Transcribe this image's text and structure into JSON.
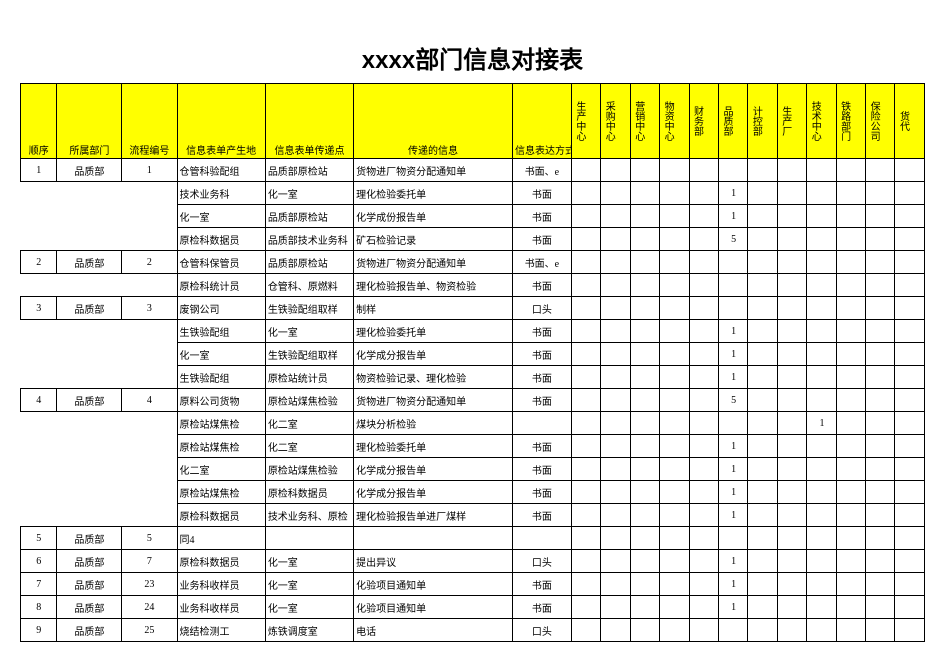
{
  "title": "xxxx部门信息对接表",
  "headers": {
    "seq": "顺序",
    "dept": "所属部门",
    "flow": "流程编号",
    "gen": "信息表单产生地",
    "pass": "信息表单传递点",
    "info": "传递的信息",
    "mode": "信息表达方式",
    "narrow": [
      "生产中心",
      "采购中心",
      "营销中心",
      "物资中心",
      "财务部",
      "品质部",
      "计控部",
      "生产厂",
      "技术中心",
      "铁路部门",
      "保险公司",
      "货代"
    ]
  },
  "rows": [
    {
      "seq": "1",
      "dept": "品质部",
      "flow": "1",
      "gen": "仓管科验配组",
      "pass": "品质部原检站",
      "info": "货物进厂物资分配通知单",
      "mode": "书面、e",
      "cells": {
        "0": "",
        "1": "",
        "2": "",
        "3": "",
        "4": "",
        "5": "",
        "6": "",
        "7": "",
        "8": "",
        "9": "",
        "10": "",
        "11": ""
      }
    },
    {
      "seq": "",
      "dept": "",
      "flow": "",
      "gen": "技术业务科",
      "pass": "化一室",
      "info": "理化检验委托单",
      "mode": "书面",
      "cells": {
        "5": "1"
      }
    },
    {
      "seq": "",
      "dept": "",
      "flow": "",
      "gen": "化一室",
      "pass": "品质部原检站",
      "info": "化学成份报告单",
      "mode": "书面",
      "cells": {
        "5": "1"
      }
    },
    {
      "seq": "",
      "dept": "",
      "flow": "",
      "gen": "原检科数据员",
      "pass": "品质部技术业务科",
      "info": "矿石检验记录",
      "mode": "书面",
      "cells": {
        "5": "5"
      }
    },
    {
      "seq": "2",
      "dept": "品质部",
      "flow": "2",
      "gen": "仓管科保管员",
      "pass": "品质部原检站",
      "info": "货物进厂物资分配通知单",
      "mode": "书面、e",
      "cells": {}
    },
    {
      "seq": "",
      "dept": "",
      "flow": "",
      "gen": "原检科统计员",
      "pass": "仓管科、原燃料",
      "info": "理化检验报告单、物资检验",
      "mode": "书面",
      "cells": {}
    },
    {
      "seq": "3",
      "dept": "品质部",
      "flow": "3",
      "gen": "废钢公司",
      "pass": "生铁验配组取样",
      "info": "制样",
      "mode": "口头",
      "cells": {}
    },
    {
      "seq": "",
      "dept": "",
      "flow": "",
      "gen": "生铁验配组",
      "pass": "化一室",
      "info": "理化检验委托单",
      "mode": "书面",
      "cells": {
        "5": "1"
      }
    },
    {
      "seq": "",
      "dept": "",
      "flow": "",
      "gen": "化一室",
      "pass": "生铁验配组取样",
      "info": "化学成分报告单",
      "mode": "书面",
      "cells": {
        "5": "1"
      }
    },
    {
      "seq": "",
      "dept": "",
      "flow": "",
      "gen": "生铁验配组",
      "pass": "原检站统计员",
      "info": "物资检验记录、理化检验",
      "mode": "书面",
      "cells": {
        "5": "1"
      }
    },
    {
      "seq": "4",
      "dept": "品质部",
      "flow": "4",
      "gen": "原料公司货物",
      "pass": "原检站煤焦检验",
      "info": "货物进厂物资分配通知单",
      "mode": "书面",
      "cells": {
        "5": "5"
      }
    },
    {
      "seq": "",
      "dept": "",
      "flow": "",
      "gen": "原检站煤焦检",
      "pass": "化二室",
      "info": "煤块分析检验",
      "mode": "",
      "cells": {
        "8": "1"
      }
    },
    {
      "seq": "",
      "dept": "",
      "flow": "",
      "gen": "原检站煤焦检",
      "pass": "化二室",
      "info": "理化检验委托单",
      "mode": "书面",
      "cells": {
        "5": "1"
      }
    },
    {
      "seq": "",
      "dept": "",
      "flow": "",
      "gen": "化二室",
      "pass": "原检站煤焦检验",
      "info": "化学成分报告单",
      "mode": "书面",
      "cells": {
        "5": "1"
      }
    },
    {
      "seq": "",
      "dept": "",
      "flow": "",
      "gen": "原检站煤焦检",
      "pass": "原检科数据员",
      "info": "化学成分报告单",
      "mode": "书面",
      "cells": {
        "5": "1"
      }
    },
    {
      "seq": "",
      "dept": "",
      "flow": "",
      "gen": "原检科数据员",
      "pass": "技术业务科、原检",
      "info": "理化检验报告单进厂煤样",
      "mode": "书面",
      "cells": {
        "5": "1"
      }
    },
    {
      "seq": "5",
      "dept": "品质部",
      "flow": "5",
      "gen": "同4",
      "pass": "",
      "info": "",
      "mode": "",
      "cells": {}
    },
    {
      "seq": "6",
      "dept": "品质部",
      "flow": "7",
      "gen": "原检科数据员",
      "pass": "化一室",
      "info": "提出异议",
      "mode": "口头",
      "cells": {
        "5": "1"
      }
    },
    {
      "seq": "7",
      "dept": "品质部",
      "flow": "23",
      "gen": "业务科收样员",
      "pass": "化一室",
      "info": "化验项目通知单",
      "mode": "书面",
      "cells": {
        "5": "1"
      }
    },
    {
      "seq": "8",
      "dept": "品质部",
      "flow": "24",
      "gen": "业务科收样员",
      "pass": "化一室",
      "info": "化验项目通知单",
      "mode": "书面",
      "cells": {
        "5": "1"
      }
    },
    {
      "seq": "9",
      "dept": "品质部",
      "flow": "25",
      "gen": "烧结检测工",
      "pass": "炼铁调度室",
      "info": "电话",
      "mode": "口头",
      "cells": {}
    }
  ],
  "colors": {
    "header_bg": "#ffff00",
    "background": "#ffffff",
    "border": "#000000",
    "text": "#000000"
  }
}
